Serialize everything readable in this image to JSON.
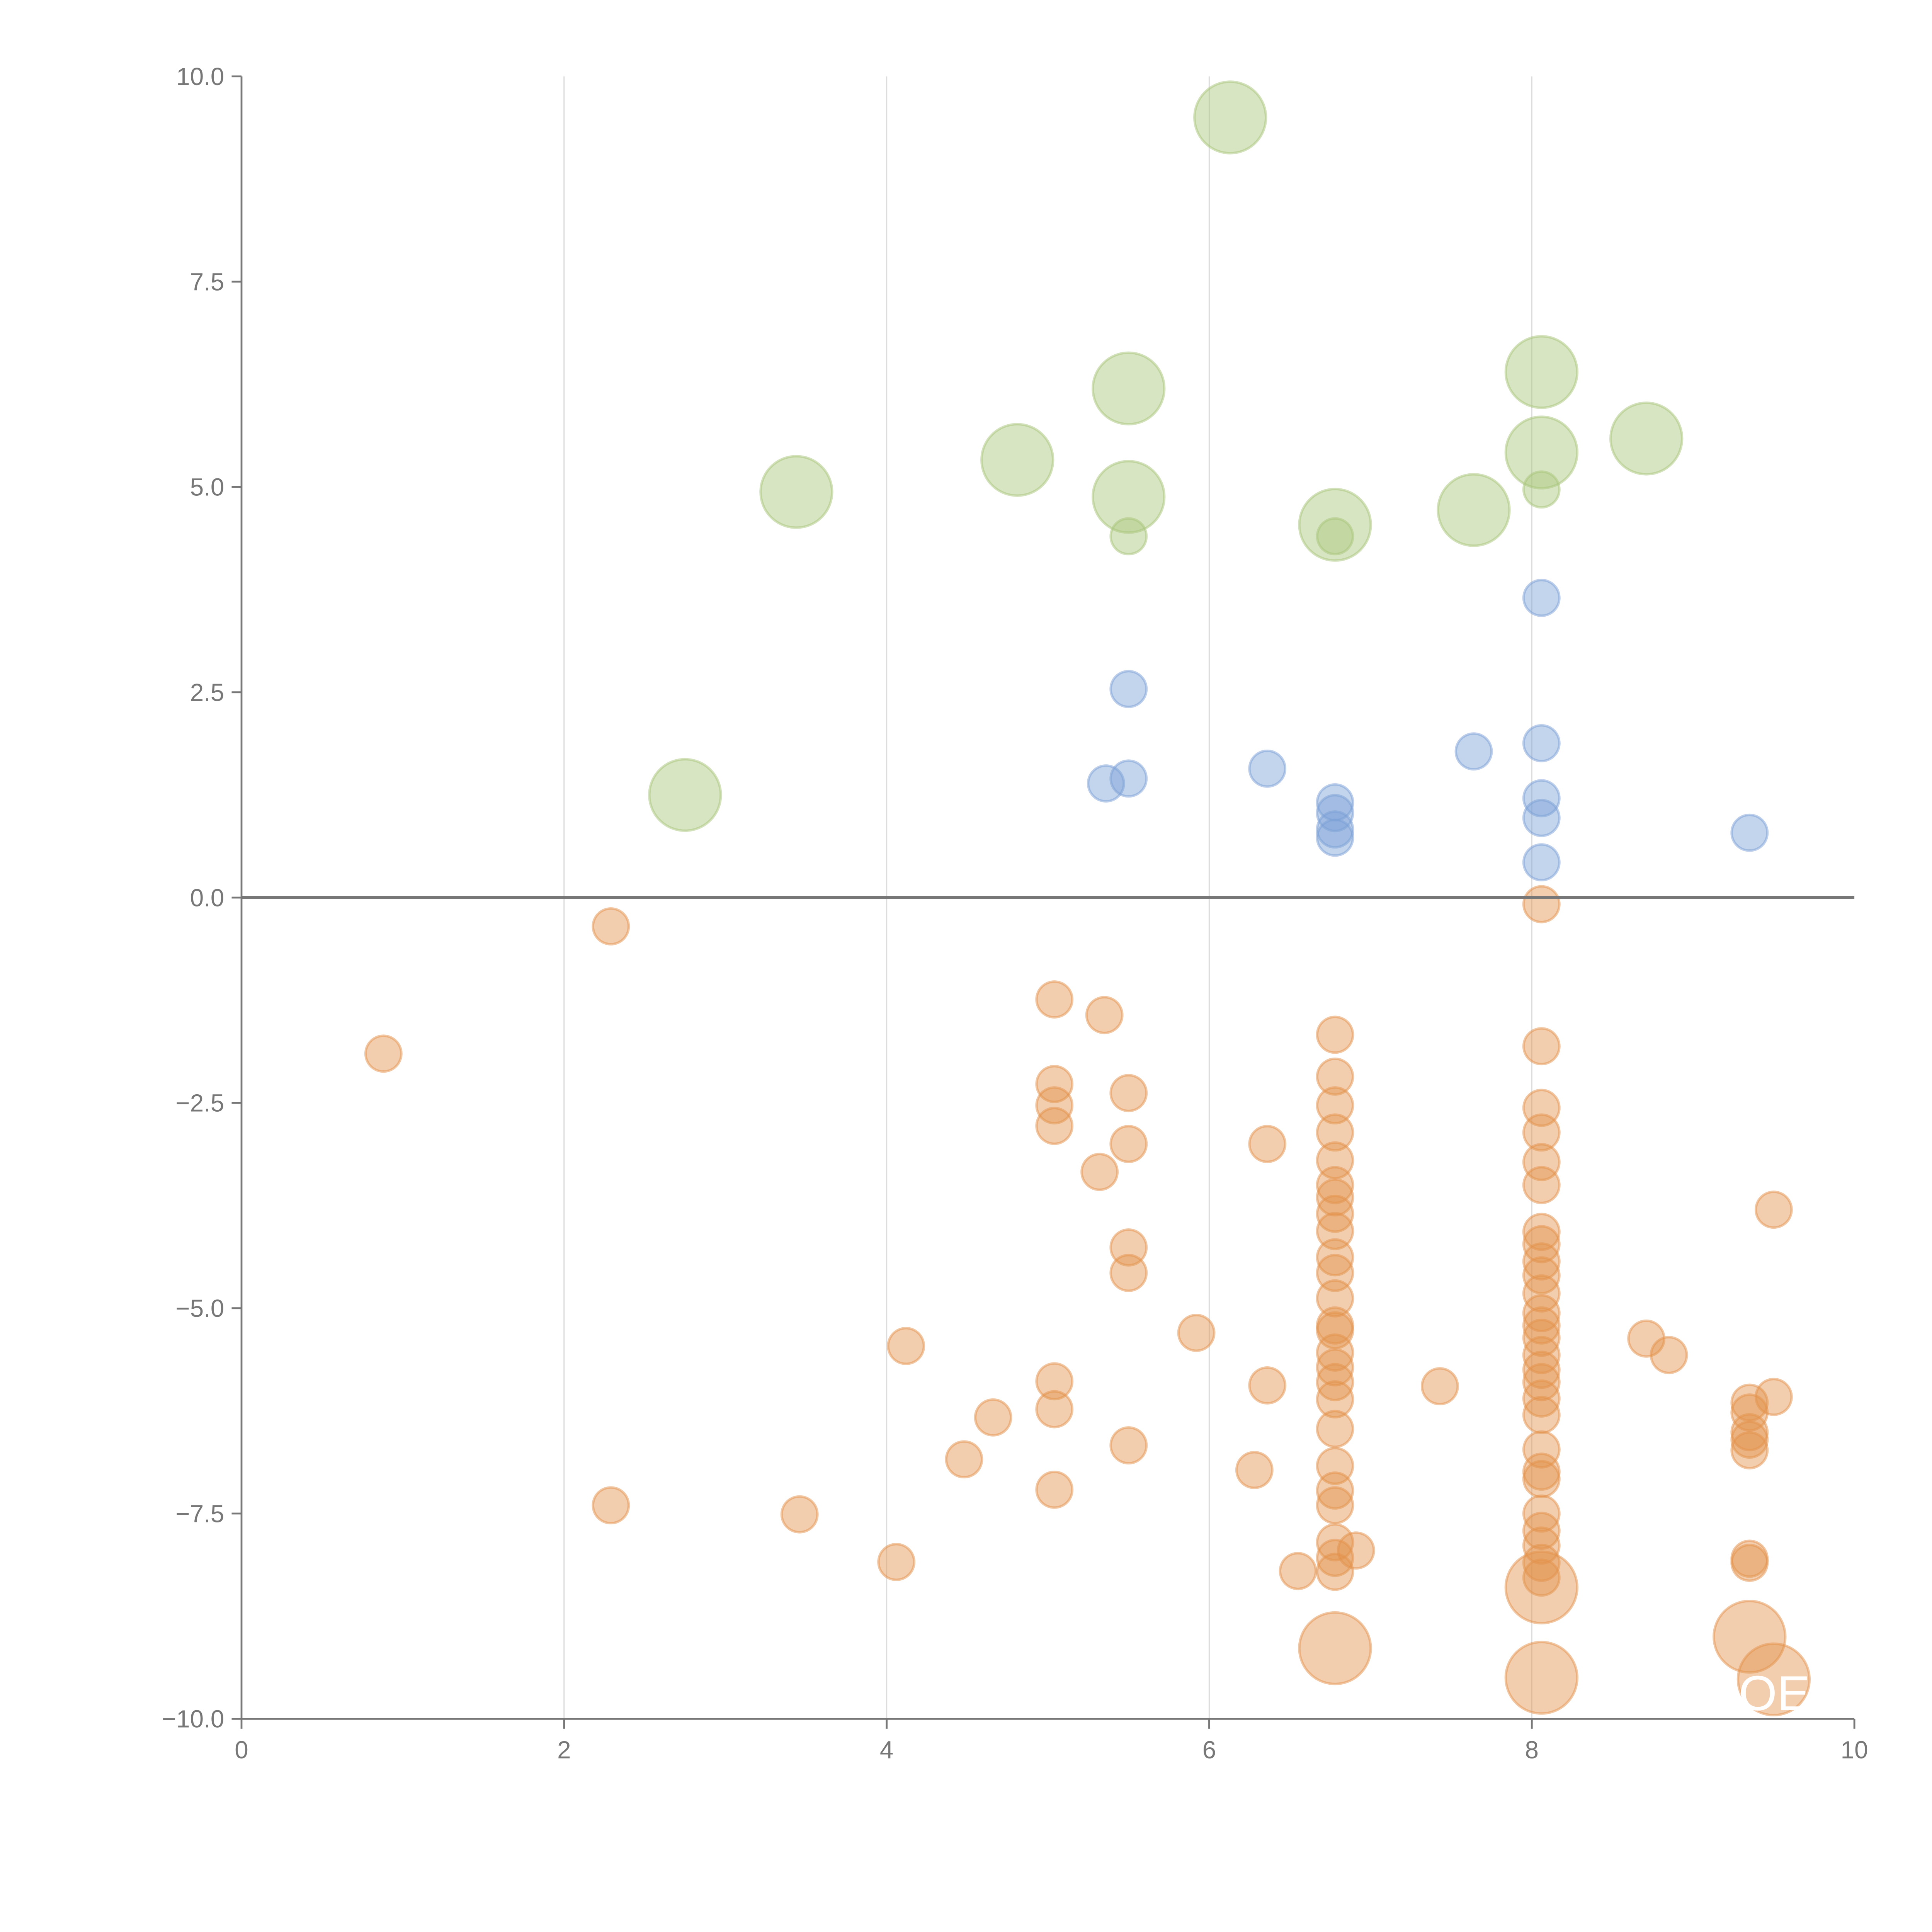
{
  "chart_data": {
    "type": "scatter",
    "title": "",
    "xlabel": "",
    "ylabel": "",
    "xlim": [
      0,
      10
    ],
    "ylim": [
      -10,
      10
    ],
    "xticks": [
      0,
      2,
      4,
      6,
      8,
      10
    ],
    "yticks": [
      10,
      7.5,
      5,
      2.5,
      0,
      -2.5,
      -5,
      -7.5,
      -10
    ],
    "ytick_labels": [
      "10.0",
      "7.5",
      "5.0",
      "2.5",
      "0.0",
      "−2.5",
      "−5.0",
      "−7.5",
      "−10.0"
    ],
    "xtick_labels": [
      "0",
      "2",
      "4",
      "6",
      "8",
      "10"
    ],
    "grid": "vertical",
    "reference_line_y": 0,
    "annotation": "OE",
    "series": [
      {
        "name": "green",
        "color": "#a8c67a",
        "points": [
          {
            "x": 6.13,
            "y": 9.5,
            "size": 4
          },
          {
            "x": 5.5,
            "y": 6.2,
            "size": 4
          },
          {
            "x": 8.06,
            "y": 6.4,
            "size": 4
          },
          {
            "x": 3.44,
            "y": 4.94,
            "size": 4
          },
          {
            "x": 4.81,
            "y": 5.33,
            "size": 4
          },
          {
            "x": 5.5,
            "y": 4.88,
            "size": 4
          },
          {
            "x": 8.06,
            "y": 5.42,
            "size": 4
          },
          {
            "x": 8.71,
            "y": 5.59,
            "size": 4
          },
          {
            "x": 7.64,
            "y": 4.72,
            "size": 4
          },
          {
            "x": 6.78,
            "y": 4.54,
            "size": 4
          },
          {
            "x": 2.75,
            "y": 1.25,
            "size": 4
          },
          {
            "x": 5.5,
            "y": 4.4,
            "size": 1
          },
          {
            "x": 6.78,
            "y": 4.4,
            "size": 1
          },
          {
            "x": 8.06,
            "y": 4.97,
            "size": 1
          }
        ]
      },
      {
        "name": "blue",
        "color": "#7b9fd6",
        "points": [
          {
            "x": 8.06,
            "y": 3.65,
            "size": 1
          },
          {
            "x": 5.5,
            "y": 2.54,
            "size": 1
          },
          {
            "x": 6.36,
            "y": 1.57,
            "size": 1
          },
          {
            "x": 7.64,
            "y": 1.78,
            "size": 1
          },
          {
            "x": 8.06,
            "y": 1.88,
            "size": 1
          },
          {
            "x": 5.36,
            "y": 1.39,
            "size": 1
          },
          {
            "x": 5.5,
            "y": 1.45,
            "size": 1
          },
          {
            "x": 6.78,
            "y": 1.16,
            "size": 1
          },
          {
            "x": 6.78,
            "y": 1.03,
            "size": 1
          },
          {
            "x": 6.78,
            "y": 0.83,
            "size": 1
          },
          {
            "x": 6.78,
            "y": 0.73,
            "size": 1
          },
          {
            "x": 8.06,
            "y": 1.21,
            "size": 1
          },
          {
            "x": 8.06,
            "y": 0.97,
            "size": 1
          },
          {
            "x": 8.06,
            "y": 0.43,
            "size": 1
          },
          {
            "x": 9.35,
            "y": 0.79,
            "size": 1
          }
        ]
      },
      {
        "name": "orange",
        "color": "#e3924c",
        "points": [
          {
            "x": 8.06,
            "y": -0.08,
            "size": 1
          },
          {
            "x": 2.29,
            "y": -0.35,
            "size": 1
          },
          {
            "x": 0.88,
            "y": -1.9,
            "size": 1
          },
          {
            "x": 5.04,
            "y": -1.24,
            "size": 1
          },
          {
            "x": 5.35,
            "y": -1.43,
            "size": 1
          },
          {
            "x": 5.04,
            "y": -2.27,
            "size": 1
          },
          {
            "x": 5.04,
            "y": -2.53,
            "size": 1
          },
          {
            "x": 5.04,
            "y": -2.78,
            "size": 1
          },
          {
            "x": 5.5,
            "y": -2.38,
            "size": 1
          },
          {
            "x": 5.5,
            "y": -3.0,
            "size": 1
          },
          {
            "x": 5.32,
            "y": -3.34,
            "size": 1
          },
          {
            "x": 6.36,
            "y": -3.0,
            "size": 1
          },
          {
            "x": 5.5,
            "y": -4.26,
            "size": 1
          },
          {
            "x": 5.5,
            "y": -4.57,
            "size": 1
          },
          {
            "x": 5.92,
            "y": -5.3,
            "size": 1
          },
          {
            "x": 4.12,
            "y": -5.46,
            "size": 1
          },
          {
            "x": 5.04,
            "y": -5.89,
            "size": 1
          },
          {
            "x": 5.04,
            "y": -6.23,
            "size": 1
          },
          {
            "x": 4.66,
            "y": -6.33,
            "size": 1
          },
          {
            "x": 4.48,
            "y": -6.84,
            "size": 1
          },
          {
            "x": 5.5,
            "y": -6.67,
            "size": 1
          },
          {
            "x": 5.04,
            "y": -7.21,
            "size": 1
          },
          {
            "x": 6.28,
            "y": -6.97,
            "size": 1
          },
          {
            "x": 2.29,
            "y": -7.4,
            "size": 1
          },
          {
            "x": 3.46,
            "y": -7.51,
            "size": 1
          },
          {
            "x": 4.06,
            "y": -8.09,
            "size": 1
          },
          {
            "x": 6.36,
            "y": -5.94,
            "size": 1
          },
          {
            "x": 7.43,
            "y": -5.95,
            "size": 1
          },
          {
            "x": 6.55,
            "y": -8.2,
            "size": 1
          },
          {
            "x": 6.91,
            "y": -7.95,
            "size": 1
          },
          {
            "x": 6.78,
            "y": -1.67,
            "size": 1
          },
          {
            "x": 6.78,
            "y": -2.18,
            "size": 1
          },
          {
            "x": 6.78,
            "y": -2.53,
            "size": 1
          },
          {
            "x": 6.78,
            "y": -2.86,
            "size": 1
          },
          {
            "x": 6.78,
            "y": -3.2,
            "size": 1
          },
          {
            "x": 6.78,
            "y": -3.5,
            "size": 1
          },
          {
            "x": 6.78,
            "y": -3.65,
            "size": 1
          },
          {
            "x": 6.78,
            "y": -3.85,
            "size": 1
          },
          {
            "x": 6.78,
            "y": -4.06,
            "size": 1
          },
          {
            "x": 6.78,
            "y": -4.38,
            "size": 1
          },
          {
            "x": 6.78,
            "y": -4.57,
            "size": 1
          },
          {
            "x": 6.78,
            "y": -4.88,
            "size": 1
          },
          {
            "x": 6.78,
            "y": -5.21,
            "size": 1
          },
          {
            "x": 6.78,
            "y": -5.27,
            "size": 1
          },
          {
            "x": 6.78,
            "y": -5.54,
            "size": 1
          },
          {
            "x": 6.78,
            "y": -5.72,
            "size": 1
          },
          {
            "x": 6.78,
            "y": -5.9,
            "size": 1
          },
          {
            "x": 6.78,
            "y": -6.11,
            "size": 1
          },
          {
            "x": 6.78,
            "y": -6.47,
            "size": 1
          },
          {
            "x": 6.78,
            "y": -6.92,
            "size": 1
          },
          {
            "x": 6.78,
            "y": -7.22,
            "size": 1
          },
          {
            "x": 6.78,
            "y": -7.4,
            "size": 1
          },
          {
            "x": 6.78,
            "y": -7.85,
            "size": 1
          },
          {
            "x": 6.78,
            "y": -8.04,
            "size": 1
          },
          {
            "x": 6.78,
            "y": -8.21,
            "size": 1
          },
          {
            "x": 6.78,
            "y": -9.14,
            "size": 4
          },
          {
            "x": 8.06,
            "y": -1.81,
            "size": 1
          },
          {
            "x": 8.06,
            "y": -2.56,
            "size": 1
          },
          {
            "x": 8.06,
            "y": -2.86,
            "size": 1
          },
          {
            "x": 8.06,
            "y": -3.22,
            "size": 1
          },
          {
            "x": 8.06,
            "y": -3.5,
            "size": 1
          },
          {
            "x": 8.06,
            "y": -4.07,
            "size": 1
          },
          {
            "x": 8.06,
            "y": -4.22,
            "size": 1
          },
          {
            "x": 8.06,
            "y": -4.43,
            "size": 1
          },
          {
            "x": 8.06,
            "y": -4.6,
            "size": 1
          },
          {
            "x": 8.06,
            "y": -4.82,
            "size": 1
          },
          {
            "x": 8.06,
            "y": -5.06,
            "size": 1
          },
          {
            "x": 8.06,
            "y": -5.21,
            "size": 1
          },
          {
            "x": 8.06,
            "y": -5.36,
            "size": 1
          },
          {
            "x": 8.06,
            "y": -5.57,
            "size": 1
          },
          {
            "x": 8.06,
            "y": -5.75,
            "size": 1
          },
          {
            "x": 8.06,
            "y": -5.9,
            "size": 1
          },
          {
            "x": 8.06,
            "y": -6.1,
            "size": 1
          },
          {
            "x": 8.06,
            "y": -6.3,
            "size": 1
          },
          {
            "x": 8.06,
            "y": -6.72,
            "size": 1
          },
          {
            "x": 8.06,
            "y": -6.99,
            "size": 1
          },
          {
            "x": 8.06,
            "y": -7.08,
            "size": 1
          },
          {
            "x": 8.06,
            "y": -7.5,
            "size": 1
          },
          {
            "x": 8.06,
            "y": -7.71,
            "size": 1
          },
          {
            "x": 8.06,
            "y": -7.89,
            "size": 1
          },
          {
            "x": 8.06,
            "y": -8.1,
            "size": 1
          },
          {
            "x": 8.06,
            "y": -8.28,
            "size": 1
          },
          {
            "x": 8.06,
            "y": -8.4,
            "size": 4
          },
          {
            "x": 8.06,
            "y": -9.5,
            "size": 4
          },
          {
            "x": 8.71,
            "y": -5.37,
            "size": 1
          },
          {
            "x": 8.85,
            "y": -5.57,
            "size": 1
          },
          {
            "x": 9.35,
            "y": -6.15,
            "size": 1
          },
          {
            "x": 9.35,
            "y": -6.27,
            "size": 1
          },
          {
            "x": 9.35,
            "y": -6.51,
            "size": 1
          },
          {
            "x": 9.35,
            "y": -6.6,
            "size": 1
          },
          {
            "x": 9.35,
            "y": -6.73,
            "size": 1
          },
          {
            "x": 9.35,
            "y": -8.05,
            "size": 1
          },
          {
            "x": 9.35,
            "y": -8.1,
            "size": 1
          },
          {
            "x": 9.5,
            "y": -3.8,
            "size": 1
          },
          {
            "x": 9.5,
            "y": -6.08,
            "size": 1
          },
          {
            "x": 9.35,
            "y": -9.0,
            "size": 4
          },
          {
            "x": 9.5,
            "y": -9.52,
            "size": 4
          }
        ]
      }
    ]
  }
}
